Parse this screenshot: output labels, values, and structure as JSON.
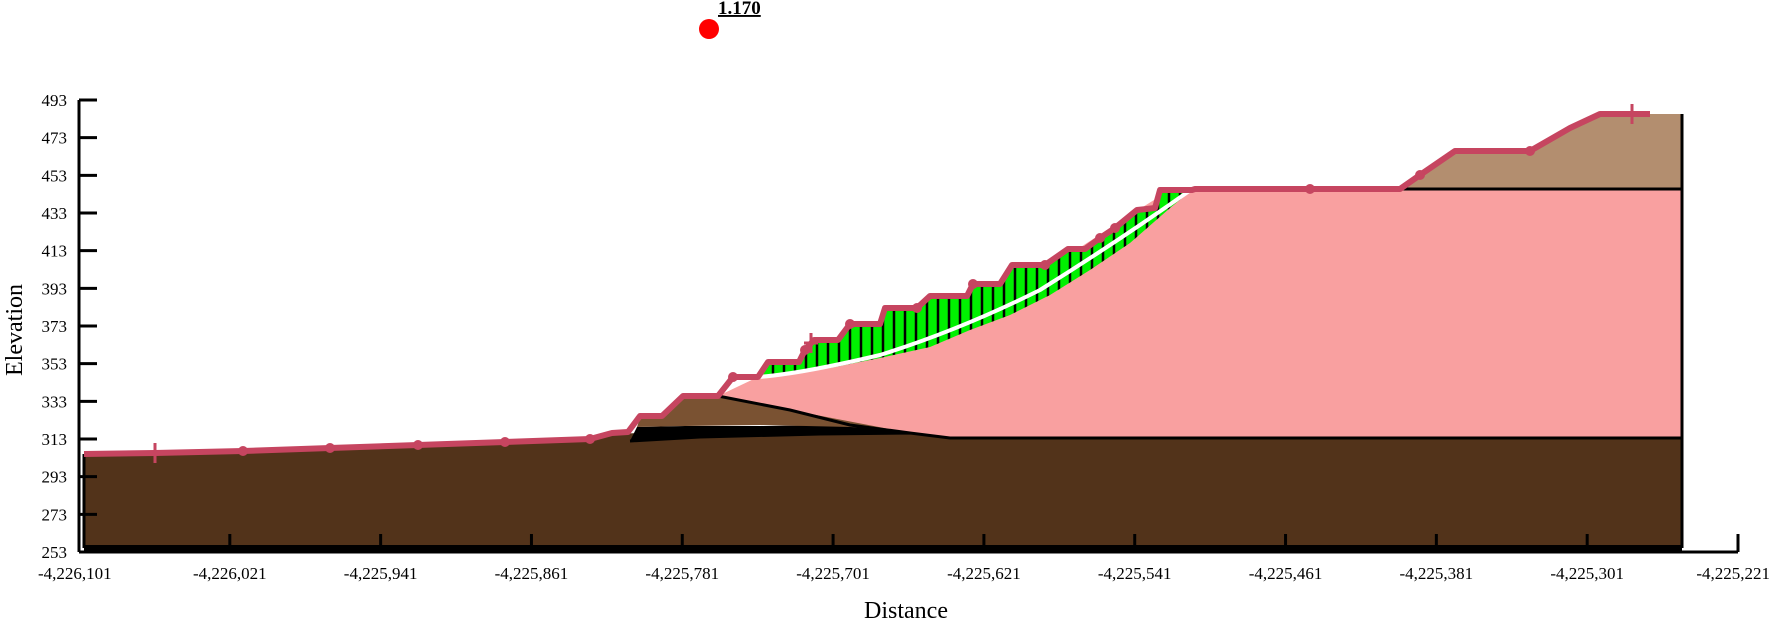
{
  "factor_of_safety": "1.170",
  "axes": {
    "x_title": "Distance",
    "y_title": "Elevation",
    "x_ticks": [
      "-4,226,101",
      "-4,226,021",
      "-4,225,941",
      "-4,225,861",
      "-4,225,781",
      "-4,225,701",
      "-4,225,621",
      "-4,225,541",
      "-4,225,461",
      "-4,225,381",
      "-4,225,301",
      "-4,225,221"
    ],
    "y_ticks": [
      "493",
      "473",
      "453",
      "433",
      "413",
      "393",
      "373",
      "353",
      "333",
      "313",
      "293",
      "273",
      "253"
    ]
  },
  "colors": {
    "bedrock": "#52331a",
    "upper_soil": "#b38e6f",
    "toe_soil": "#7a5232",
    "main_fill": "#f9a0a0",
    "slip_mass": "#00f000",
    "ground_line": "#c64560",
    "slip_circle_center": "#ff0000"
  }
}
